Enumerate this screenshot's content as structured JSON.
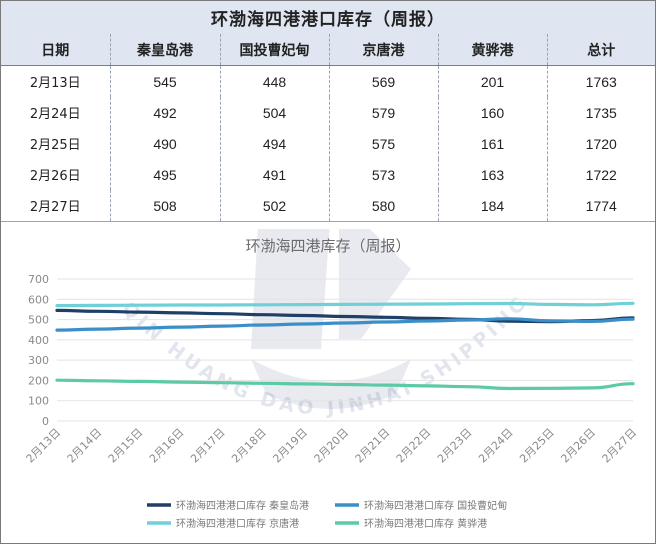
{
  "header": {
    "title": "环渤海四港港口库存（周报）"
  },
  "table": {
    "columns": [
      "日期",
      "秦皇岛港",
      "国投曹妃甸",
      "京唐港",
      "黄骅港",
      "总计"
    ],
    "rows": [
      [
        "2月13日",
        "545",
        "448",
        "569",
        "201",
        "1763"
      ],
      [
        "2月24日",
        "492",
        "504",
        "579",
        "160",
        "1735"
      ],
      [
        "2月25日",
        "490",
        "494",
        "575",
        "161",
        "1720"
      ],
      [
        "2月26日",
        "495",
        "491",
        "573",
        "163",
        "1722"
      ],
      [
        "2月27日",
        "508",
        "502",
        "580",
        "184",
        "1774"
      ]
    ]
  },
  "chart_data": {
    "type": "line",
    "title": "环渤海四港库存（周报）",
    "x": [
      "2月13日",
      "2月14日",
      "2月15日",
      "2月16日",
      "2月17日",
      "2月18日",
      "2月19日",
      "2月20日",
      "2月21日",
      "2月22日",
      "2月23日",
      "2月24日",
      "2月25日",
      "2月26日",
      "2月27日"
    ],
    "ylim": [
      0,
      700
    ],
    "yticks": [
      0,
      100,
      200,
      300,
      400,
      500,
      600,
      700
    ],
    "grid": true,
    "legend_position": "bottom",
    "series": [
      {
        "name": "环渤海四港港口库存 秦皇岛港",
        "color": "#1f3f66",
        "values": [
          545,
          541,
          537,
          533,
          529,
          524,
          520,
          515,
          511,
          506,
          501,
          492,
          490,
          495,
          508
        ]
      },
      {
        "name": "环渤海四港港口库存 国投曹妃甸",
        "color": "#3a8fc9",
        "values": [
          448,
          453,
          458,
          463,
          468,
          473,
          478,
          483,
          488,
          493,
          498,
          504,
          494,
          491,
          502
        ]
      },
      {
        "name": "环渤海四港港口库存 京唐港",
        "color": "#6fd0d8",
        "values": [
          569,
          570,
          571,
          572,
          572,
          573,
          574,
          575,
          576,
          577,
          578,
          579,
          575,
          573,
          580
        ]
      },
      {
        "name": "环渤海四港港口库存 黄骅港",
        "color": "#5cc9a7",
        "values": [
          201,
          198,
          195,
          192,
          189,
          186,
          183,
          180,
          177,
          173,
          169,
          160,
          161,
          163,
          184
        ]
      }
    ]
  },
  "watermark": {
    "text": "QIN HUANG DAO JINHAI SHIPPING"
  }
}
